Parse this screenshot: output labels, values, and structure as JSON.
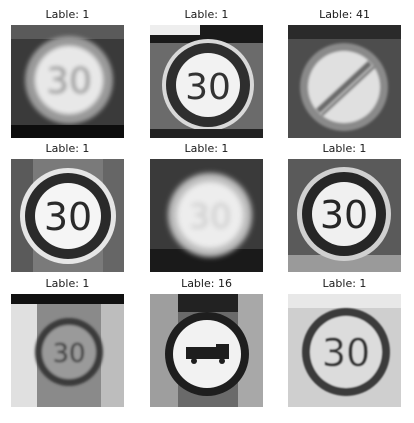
{
  "grid": {
    "items": [
      {
        "label": "Lable: 1",
        "sign": "30",
        "style": "blur"
      },
      {
        "label": "Lable: 1",
        "sign": "30",
        "style": "sharp"
      },
      {
        "label": "Lable: 41",
        "sign": "",
        "style": "end"
      },
      {
        "label": "Lable: 1",
        "sign": "30",
        "style": "sharp"
      },
      {
        "label": "Lable: 1",
        "sign": "30",
        "style": "bright"
      },
      {
        "label": "Lable: 1",
        "sign": "30",
        "style": "sharp"
      },
      {
        "label": "Lable: 1",
        "sign": "30",
        "style": "dark"
      },
      {
        "label": "Lable: 16",
        "sign": "",
        "style": "truck"
      },
      {
        "label": "Lable: 1",
        "sign": "30",
        "style": "gray"
      }
    ]
  }
}
